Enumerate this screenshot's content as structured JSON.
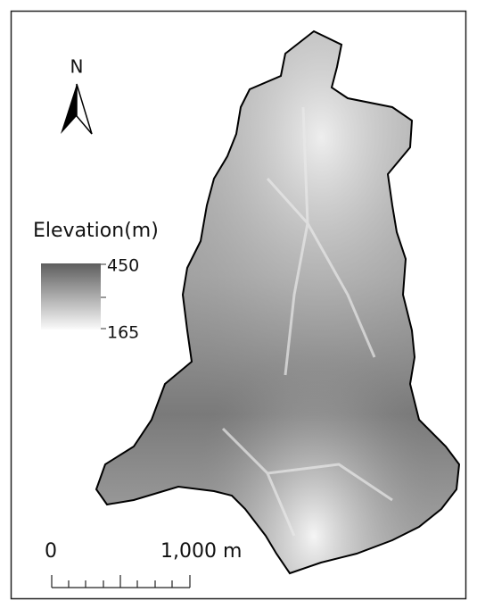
{
  "north_arrow": {
    "label": "N"
  },
  "legend": {
    "title": "Elevation(m)",
    "max": 450,
    "min": 165
  },
  "scale_bar": {
    "start": 0,
    "end_label": "1,000 m"
  }
}
